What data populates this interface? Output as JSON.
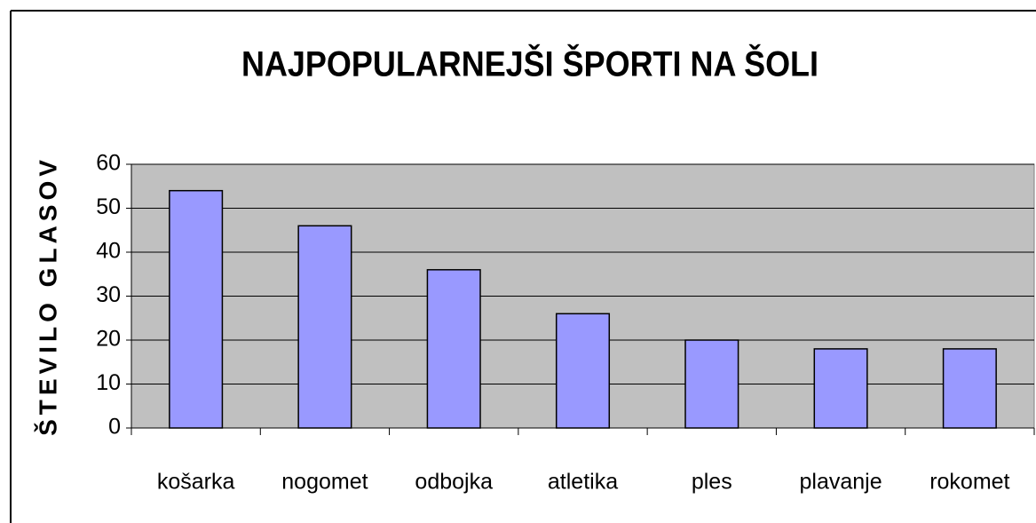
{
  "chart_data": {
    "type": "bar",
    "title": "NAJPOPULARNEJŠI ŠPORTI NA ŠOLI",
    "ylabel": "ŠTEVILO GLASOV",
    "categories": [
      "košarka",
      "nogomet",
      "odbojka",
      "atletika",
      "ples",
      "plavanje",
      "rokomet"
    ],
    "values": [
      54,
      46,
      36,
      26,
      20,
      18,
      18
    ],
    "color": "#9999ff",
    "ylim": [
      0,
      60
    ],
    "yticks": [
      0,
      10,
      20,
      30,
      40,
      50,
      60
    ],
    "grid": true
  }
}
